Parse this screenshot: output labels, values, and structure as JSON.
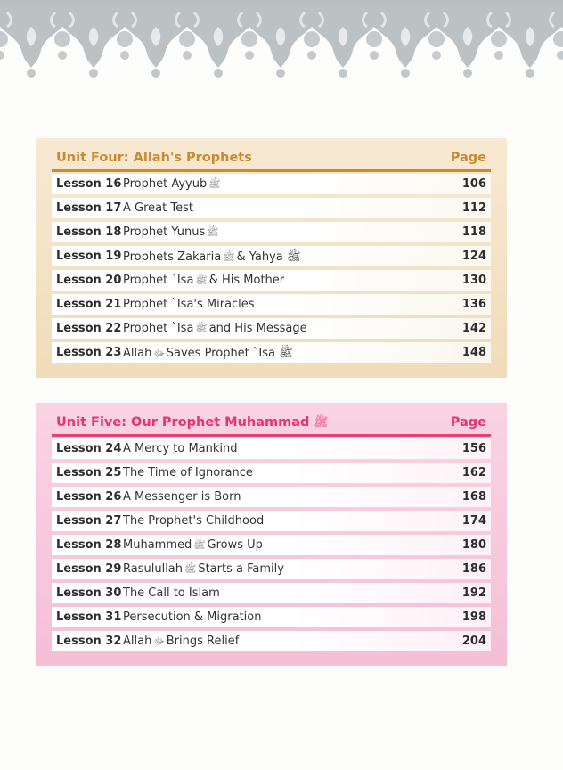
{
  "units": [
    {
      "title": "Unit Four: Allah's Prophets",
      "page_header": "Page",
      "accent": "#c98a2e",
      "lessons": [
        {
          "lesson": "Lesson 16",
          "title": "Prophet Ayyub",
          "honorific": "ﷺ",
          "after": "",
          "page": "106"
        },
        {
          "lesson": "Lesson 17",
          "title": "A Great Test",
          "honorific": "",
          "after": "",
          "page": "112"
        },
        {
          "lesson": "Lesson 18",
          "title": "Prophet Yunus",
          "honorific": "ﷺ",
          "after": "",
          "page": "118"
        },
        {
          "lesson": "Lesson 19",
          "title": "Prophets Zakaria",
          "honorific": "ﷺ",
          "after": "& Yahya ﷺ",
          "page": "124"
        },
        {
          "lesson": "Lesson 20",
          "title": "Prophet `Isa",
          "honorific": "ﷺ",
          "after": "& His Mother",
          "page": "130"
        },
        {
          "lesson": "Lesson 21",
          "title": "Prophet `Isa's Miracles",
          "honorific": "",
          "after": "",
          "page": "136"
        },
        {
          "lesson": "Lesson 22",
          "title": "Prophet `Isa",
          "honorific": "ﷺ",
          "after": "and His Message",
          "page": "142"
        },
        {
          "lesson": "Lesson 23",
          "title": "Allah",
          "honorific": "ﷻ",
          "after": "Saves Prophet `Isa ﷺ",
          "page": "148"
        }
      ]
    },
    {
      "title": "Unit Five: Our Prophet Muhammad",
      "title_honorific": "ﷺ",
      "page_header": "Page",
      "accent": "#e8336e",
      "lessons": [
        {
          "lesson": "Lesson 24",
          "title": "A Mercy to Mankind",
          "honorific": "",
          "after": "",
          "page": "156"
        },
        {
          "lesson": "Lesson 25",
          "title": "The Time of Ignorance",
          "honorific": "",
          "after": "",
          "page": "162"
        },
        {
          "lesson": "Lesson 26",
          "title": "A Messenger is Born",
          "honorific": "",
          "after": "",
          "page": "168"
        },
        {
          "lesson": "Lesson 27",
          "title": "The Prophet's Childhood",
          "honorific": "",
          "after": "",
          "page": "174"
        },
        {
          "lesson": "Lesson 28",
          "title": "Muhammed",
          "honorific": "ﷺ",
          "after": "Grows Up",
          "page": "180"
        },
        {
          "lesson": "Lesson 29",
          "title": "Rasulullah",
          "honorific": "ﷺ",
          "after": "Starts a Family",
          "page": "186"
        },
        {
          "lesson": "Lesson 30",
          "title": "The Call to Islam",
          "honorific": "",
          "after": "",
          "page": "192"
        },
        {
          "lesson": "Lesson 31",
          "title": "Persecution & Migration",
          "honorific": "",
          "after": "",
          "page": "198"
        },
        {
          "lesson": "Lesson 32",
          "title": "Allah",
          "honorific": "ﷻ",
          "after": "Brings Relief",
          "page": "204"
        }
      ]
    }
  ]
}
